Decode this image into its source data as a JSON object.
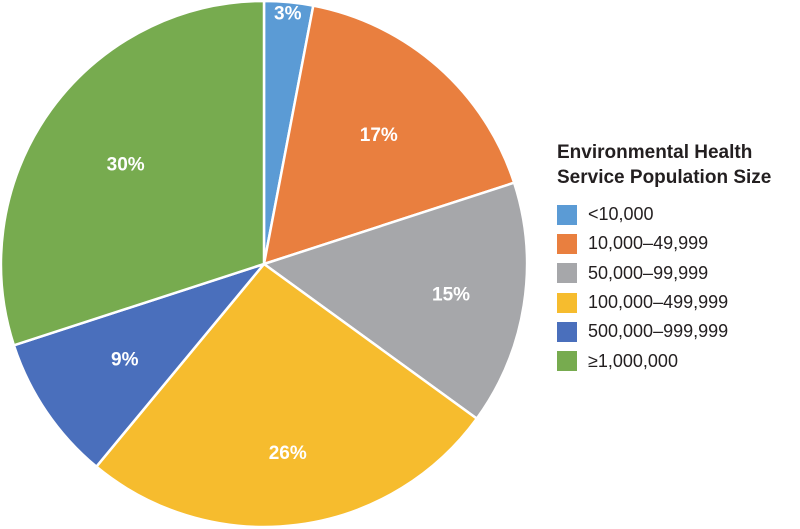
{
  "chart_data": {
    "type": "pie",
    "title": "Environmental Health Service Population Size",
    "legend_title_lines": [
      "Environmental Health",
      "Service Population Size"
    ],
    "legend_position": "right",
    "slices": [
      {
        "label": "<10,000",
        "value": 3,
        "display": "3%",
        "color": "#5B9BD5"
      },
      {
        "label": "10,000–49,999",
        "value": 17,
        "display": "17%",
        "color": "#E97F3F"
      },
      {
        "label": "50,000–99,999",
        "value": 15,
        "display": "15%",
        "color": "#A6A7AA"
      },
      {
        "label": "100,000–499,999",
        "value": 26,
        "display": "26%",
        "color": "#F6BC2E"
      },
      {
        "label": "500,000–999,999",
        "value": 9,
        "display": "9%",
        "color": "#4A6FBC"
      },
      {
        "label": "≥1,000,000",
        "value": 30,
        "display": "30%",
        "color": "#77AB4F"
      }
    ],
    "start_angle": "top",
    "direction": "clockwise"
  }
}
